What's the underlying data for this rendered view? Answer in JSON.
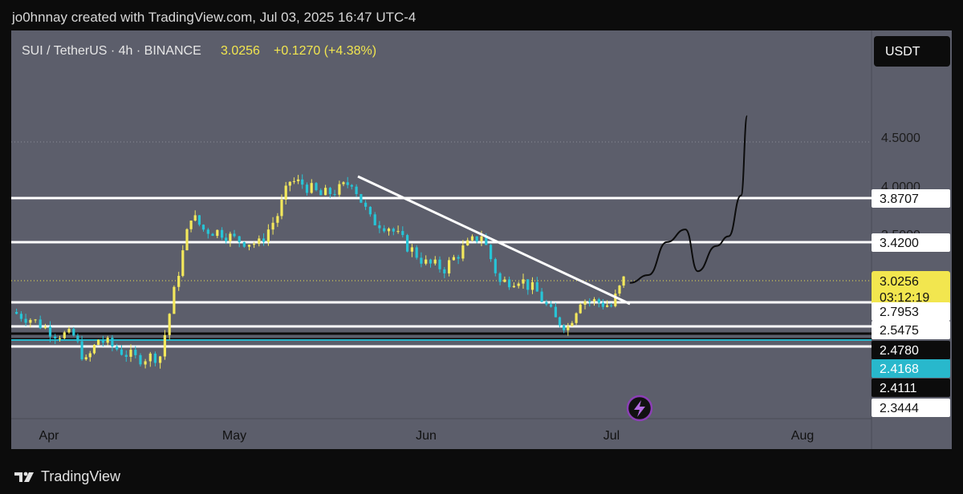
{
  "header": {
    "text": "jo0hnnay created with TradingView.com, Jul 03, 2025 16:47 UTC-4"
  },
  "symbol": {
    "name": "SUI / TetherUS · 4h · BINANCE",
    "price": "3.0256",
    "change": "+0.1270 (+4.38%)"
  },
  "currency_button": "USDT",
  "footer": {
    "brand": "TradingView"
  },
  "colors": {
    "page_bg": "#0c0c0c",
    "plot_bg": "#5c5e6b",
    "axis_bg": "#5c5e6b",
    "up": "#f3e85c",
    "down": "#27c4d6",
    "line": "#ffffff",
    "price_badge": "#f2e64f",
    "cyan_badge": "#28b8cc"
  },
  "chart_data": {
    "type": "candlestick",
    "symbol": "SUI / TetherUS",
    "interval": "4h",
    "exchange": "BINANCE",
    "x_ticks": [
      "Apr",
      "May",
      "Jun",
      "Jul",
      "Aug"
    ],
    "y_ticks": [
      "4.5000",
      "4.0000",
      "3.5000"
    ],
    "price_path_series": {
      "dates": [
        "Mar 26",
        "Mar 29",
        "Apr 02",
        "Apr 05",
        "Apr 07",
        "Apr 09",
        "Apr 12",
        "Apr 15",
        "Apr 19",
        "Apr 22",
        "Apr 24",
        "Apr 26",
        "Apr 29",
        "May 01",
        "May 05",
        "May 08",
        "May 10",
        "May 12",
        "May 15",
        "May 18",
        "May 20",
        "May 23",
        "May 26",
        "May 29",
        "Jun 01",
        "Jun 04",
        "Jun 07",
        "Jun 10",
        "Jun 13",
        "Jun 16",
        "Jun 19",
        "Jun 22",
        "Jun 24",
        "Jun 26",
        "Jun 29",
        "Jul 01",
        "Jul 03"
      ],
      "close": [
        2.7,
        2.63,
        2.48,
        2.45,
        2.18,
        2.42,
        2.32,
        2.22,
        2.25,
        3.12,
        3.7,
        3.55,
        3.52,
        3.45,
        3.4,
        3.7,
        4.05,
        4.02,
        3.9,
        3.96,
        4.05,
        3.65,
        3.58,
        3.38,
        3.2,
        3.15,
        3.35,
        3.5,
        3.0,
        3.05,
        2.9,
        2.62,
        2.55,
        2.83,
        2.8,
        2.76,
        3.03
      ]
    },
    "horizontal_levels": [
      {
        "label": "3.8707",
        "value": 3.8707
      },
      {
        "label": "3.4200",
        "value": 3.42
      },
      {
        "label": "2.7953",
        "value": 2.7953
      },
      {
        "label": "2.5475",
        "value": 2.5475
      },
      {
        "label": "2.4780",
        "value": 2.478
      },
      {
        "label": "2.4168",
        "value": 2.4168
      },
      {
        "label": "2.4111",
        "value": 2.4111
      },
      {
        "label": "2.3444",
        "value": 2.3444
      }
    ],
    "current_price": {
      "label": "3.0256",
      "value": 3.0256,
      "countdown": "03:12:19"
    },
    "dotted_level": 4.45,
    "trendline": {
      "from": {
        "date": "May 21",
        "price": 4.1
      },
      "to": {
        "date": "Jul 04",
        "price": 2.78
      }
    },
    "projection_path": [
      {
        "date": "Jul 04",
        "price": 3.0
      },
      {
        "date": "Jul 07",
        "price": 3.08
      },
      {
        "date": "Jul 10",
        "price": 3.42
      },
      {
        "date": "Jul 13",
        "price": 3.55
      },
      {
        "date": "Jul 15",
        "price": 3.12
      },
      {
        "date": "Jul 18",
        "price": 3.38
      },
      {
        "date": "Jul 20",
        "price": 3.48
      },
      {
        "date": "Jul 22",
        "price": 3.9
      },
      {
        "date": "Jul 23",
        "price": 4.72
      }
    ]
  }
}
